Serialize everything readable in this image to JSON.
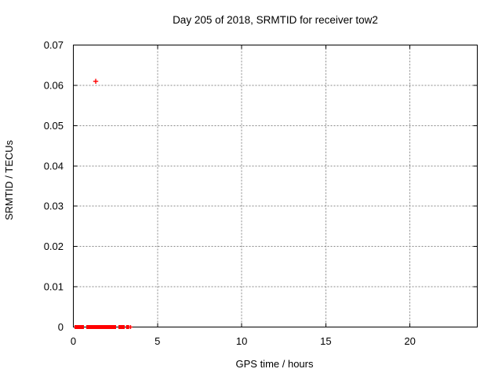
{
  "window": {
    "background_color": "#ffffff"
  },
  "chart_data": {
    "type": "scatter",
    "title": "Day 205 of 2018, SRMTID for receiver tow2",
    "xlabel": "GPS time / hours",
    "ylabel": "SRMTID / TECUs",
    "xlim": [
      0,
      24
    ],
    "ylim": [
      0,
      0.07
    ],
    "grid": true,
    "legend": "none",
    "colors": {
      "marker": "#ff0000",
      "grid": "#888888",
      "axis": "#000000",
      "text": "#000000",
      "background": "#ffffff"
    },
    "xticks": {
      "values": [
        0,
        5,
        10,
        15,
        20
      ],
      "labels": [
        "0",
        "5",
        "10",
        "15",
        "20"
      ]
    },
    "yticks": {
      "values": [
        0,
        0.01,
        0.02,
        0.03,
        0.04,
        0.05,
        0.06,
        0.07
      ],
      "labels": [
        "0",
        "0.01",
        "0.02",
        "0.03",
        "0.04",
        "0.05",
        "0.06",
        "0.07"
      ]
    },
    "series": [
      {
        "name": "SRMTID",
        "marker": "plus",
        "color": "#ff0000",
        "description": "dense overlapping plus markers at y=0 from ~0.07h to ~3.3h, one isolated marker at ~3.4h, one outlier at (1.33, 0.061)",
        "zero_value_segments_hours": [
          [
            0.07,
            0.63
          ],
          [
            0.77,
            2.54
          ],
          [
            2.68,
            3.05
          ],
          [
            3.13,
            3.32
          ]
        ],
        "isolated_points": [
          [
            3.4,
            0
          ]
        ],
        "outlier_points": [
          [
            1.33,
            0.061
          ]
        ]
      }
    ]
  }
}
